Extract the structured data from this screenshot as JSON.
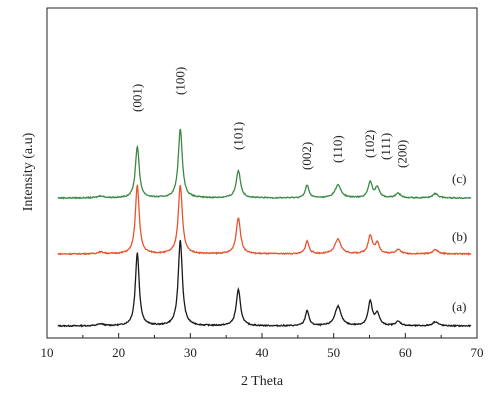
{
  "chart_data": {
    "type": "line",
    "title": "",
    "xlabel": "2 Theta",
    "ylabel": "Intensity (a.u)",
    "xlim": [
      10,
      70
    ],
    "xticks": [
      "10",
      "20",
      "30",
      "40",
      "50",
      "60",
      "70"
    ],
    "y_ticks_shown": false,
    "grid": false,
    "legend": "inline labels at right",
    "colors": {
      "a": "#1a1a1a",
      "b": "#e8532f",
      "c": "#3a8a45"
    },
    "peaks": [
      {
        "label": "(001)",
        "x": 22.6
      },
      {
        "label": "(100)",
        "x": 28.6
      },
      {
        "label": "(101)",
        "x": 36.7
      },
      {
        "label": "(002)",
        "x": 46.3
      },
      {
        "label": "(110)",
        "x": 50.6
      },
      {
        "label": "(102)",
        "x": 55.1
      },
      {
        "label": "(111)",
        "x": 56.1
      },
      {
        "label": "(200)",
        "x": 59.0
      }
    ],
    "series": [
      {
        "name": "(a)",
        "color": "#1a1a1a",
        "baseline": 0,
        "peak_heights": [
          85,
          100,
          42,
          18,
          23,
          28,
          14,
          5,
          5
        ]
      },
      {
        "name": "(b)",
        "color": "#e8532f",
        "baseline": 1,
        "peak_heights": [
          80,
          80,
          42,
          15,
          17,
          21,
          12,
          5,
          5
        ]
      },
      {
        "name": "(c)",
        "color": "#3a8a45",
        "baseline": 2,
        "peak_heights": [
          60,
          80,
          32,
          15,
          15,
          18,
          12,
          5,
          5
        ]
      }
    ],
    "peak_positions": [
      22.6,
      28.6,
      36.7,
      46.3,
      50.6,
      55.1,
      56.1,
      59.0,
      64.2
    ]
  }
}
